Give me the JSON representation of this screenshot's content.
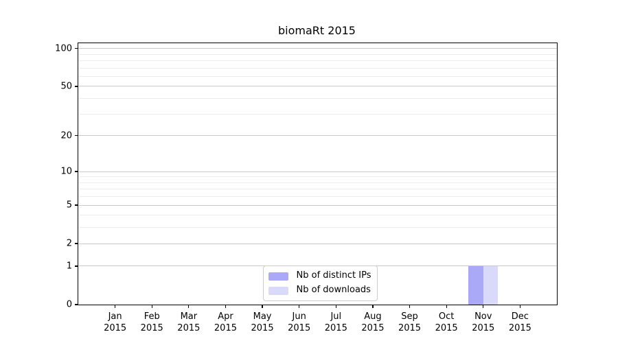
{
  "chart_data": {
    "type": "bar",
    "title": "biomaRt 2015",
    "categories": [
      {
        "month": "Jan",
        "year": "2015"
      },
      {
        "month": "Feb",
        "year": "2015"
      },
      {
        "month": "Mar",
        "year": "2015"
      },
      {
        "month": "Apr",
        "year": "2015"
      },
      {
        "month": "May",
        "year": "2015"
      },
      {
        "month": "Jun",
        "year": "2015"
      },
      {
        "month": "Jul",
        "year": "2015"
      },
      {
        "month": "Aug",
        "year": "2015"
      },
      {
        "month": "Sep",
        "year": "2015"
      },
      {
        "month": "Oct",
        "year": "2015"
      },
      {
        "month": "Nov",
        "year": "2015"
      },
      {
        "month": "Dec",
        "year": "2015"
      }
    ],
    "series": [
      {
        "name": "Nb of distinct IPs",
        "color": "#a9a9f7",
        "values": [
          0,
          0,
          0,
          0,
          0,
          0,
          0,
          0,
          0,
          0,
          1,
          0
        ]
      },
      {
        "name": "Nb of downloads",
        "color": "#d9d9f9",
        "values": [
          0,
          0,
          0,
          0,
          0,
          0,
          0,
          0,
          0,
          0,
          1,
          0
        ]
      }
    ],
    "y_scale": "log1p",
    "y_ticks": [
      0,
      1,
      2,
      5,
      10,
      20,
      50,
      100
    ],
    "y_minor_gridlines": [
      3,
      4,
      6,
      7,
      8,
      9,
      30,
      40,
      60,
      70,
      80,
      90
    ],
    "ylim": [
      0,
      110
    ],
    "grid": "horizontal-only",
    "legend_position": "lower center",
    "colors": {
      "major_gridline": "#c9c9c9",
      "minor_gridline": "#ececec",
      "axis": "#000000",
      "legend_border": "#cccccc"
    }
  }
}
